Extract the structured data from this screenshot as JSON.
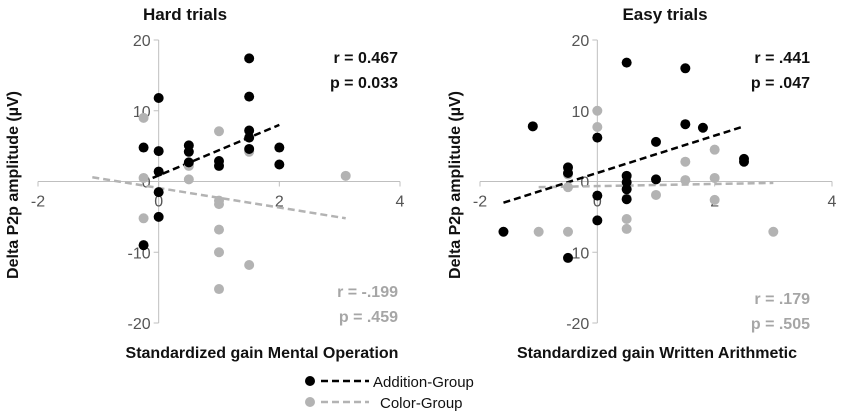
{
  "colors": {
    "addition": "#000000",
    "color_group": "#b3b3b3",
    "axis": "#bfbfbf"
  },
  "legend": [
    {
      "label": "Addition-Group",
      "marker": "black-dot",
      "line": "black-dashed"
    },
    {
      "label": "Color-Group",
      "marker": "grey-dot",
      "line": "grey-dashed"
    }
  ],
  "chart_data": [
    {
      "type": "scatter",
      "title": "Hard trials",
      "xlabel": "Standardized gain Mental Operation",
      "ylabel": "Delta P2p amplitude (µV)",
      "xlim": [
        -2,
        4
      ],
      "ylim": [
        -20,
        20
      ],
      "xticks": [
        "-2",
        "0",
        "2",
        "4"
      ],
      "yticks": [
        "20",
        "10",
        "0",
        "-10",
        "-20"
      ],
      "series": [
        {
          "name": "Addition-Group",
          "points": [
            [
              -0.25,
              4.8
            ],
            [
              -0.25,
              -9
            ],
            [
              0,
              11.8
            ],
            [
              0,
              4.3
            ],
            [
              0,
              1.4
            ],
            [
              0,
              -1.5
            ],
            [
              0,
              -5
            ],
            [
              0.5,
              5.1
            ],
            [
              0.5,
              4.2
            ],
            [
              0.5,
              2.7
            ],
            [
              1,
              2.9
            ],
            [
              1,
              2.2
            ],
            [
              1.5,
              17.4
            ],
            [
              1.5,
              12
            ],
            [
              1.5,
              7.2
            ],
            [
              1.5,
              6.2
            ],
            [
              1.5,
              4.6
            ],
            [
              2,
              4.8
            ],
            [
              2,
              2.4
            ]
          ],
          "trend": {
            "x": [
              -0.1,
              2
            ],
            "y": [
              0.5,
              8
            ]
          },
          "stats": {
            "r": "r = 0.467",
            "p": "p = 0.033"
          }
        },
        {
          "name": "Color-Group",
          "points": [
            [
              -0.25,
              9
            ],
            [
              -0.25,
              0.5
            ],
            [
              -0.25,
              -5.2
            ],
            [
              0.5,
              2.2
            ],
            [
              0.5,
              0.3
            ],
            [
              1,
              7.1
            ],
            [
              1,
              -2.7
            ],
            [
              1,
              -3.2
            ],
            [
              1,
              -6.8
            ],
            [
              1,
              -10
            ],
            [
              1,
              -15.2
            ],
            [
              1.5,
              4.2
            ],
            [
              1.5,
              -11.8
            ],
            [
              3.1,
              0.8
            ]
          ],
          "trend": {
            "x": [
              -1.1,
              3.1
            ],
            "y": [
              0.6,
              -5.2
            ]
          },
          "stats": {
            "r": "r = -.199",
            "p": "p = .459"
          }
        }
      ]
    },
    {
      "type": "scatter",
      "title": "Easy trials",
      "xlabel": "Standardized gain Written Arithmetic",
      "ylabel": "Delta P2p amplitude (µV)",
      "xlim": [
        -2,
        4
      ],
      "ylim": [
        -20,
        20
      ],
      "xticks": [
        "-2",
        "0",
        "2",
        "4"
      ],
      "yticks": [
        "20",
        "10",
        "0",
        "-10",
        "-20"
      ],
      "series": [
        {
          "name": "Addition-Group",
          "points": [
            [
              -1.6,
              -7.1
            ],
            [
              -1.1,
              7.8
            ],
            [
              -0.5,
              2
            ],
            [
              -0.5,
              1.2
            ],
            [
              -0.5,
              -10.8
            ],
            [
              0,
              6.2
            ],
            [
              0,
              -2
            ],
            [
              0,
              -5.5
            ],
            [
              0.5,
              16.8
            ],
            [
              0.5,
              0.8
            ],
            [
              0.5,
              -0.1
            ],
            [
              0.5,
              -1.1
            ],
            [
              0.5,
              -2.5
            ],
            [
              1,
              0.3
            ],
            [
              1,
              5.6
            ],
            [
              1.5,
              16
            ],
            [
              1.5,
              8.1
            ],
            [
              1.8,
              7.6
            ],
            [
              2.5,
              3.2
            ],
            [
              2.5,
              2.8
            ]
          ],
          "trend": {
            "x": [
              -1.6,
              2.5
            ],
            "y": [
              -3,
              7.8
            ]
          },
          "stats": {
            "r": "r = .441",
            "p": "p = .047"
          }
        },
        {
          "name": "Color-Group",
          "points": [
            [
              -1,
              -7.1
            ],
            [
              -0.5,
              -7.1
            ],
            [
              -0.5,
              1
            ],
            [
              -0.5,
              -0.8
            ],
            [
              0,
              10
            ],
            [
              0,
              7.7
            ],
            [
              0.5,
              -2.4
            ],
            [
              0.5,
              -5.3
            ],
            [
              0.5,
              -6.7
            ],
            [
              1,
              -1.9
            ],
            [
              1.5,
              2.8
            ],
            [
              1.5,
              0.2
            ],
            [
              2,
              4.5
            ],
            [
              2,
              0.5
            ],
            [
              2,
              -2.6
            ],
            [
              3,
              -7.1
            ]
          ],
          "trend": {
            "x": [
              -1,
              3
            ],
            "y": [
              -0.8,
              -0.2
            ]
          },
          "stats": {
            "r": "r = .179",
            "p": "p = .505"
          }
        }
      ]
    }
  ]
}
